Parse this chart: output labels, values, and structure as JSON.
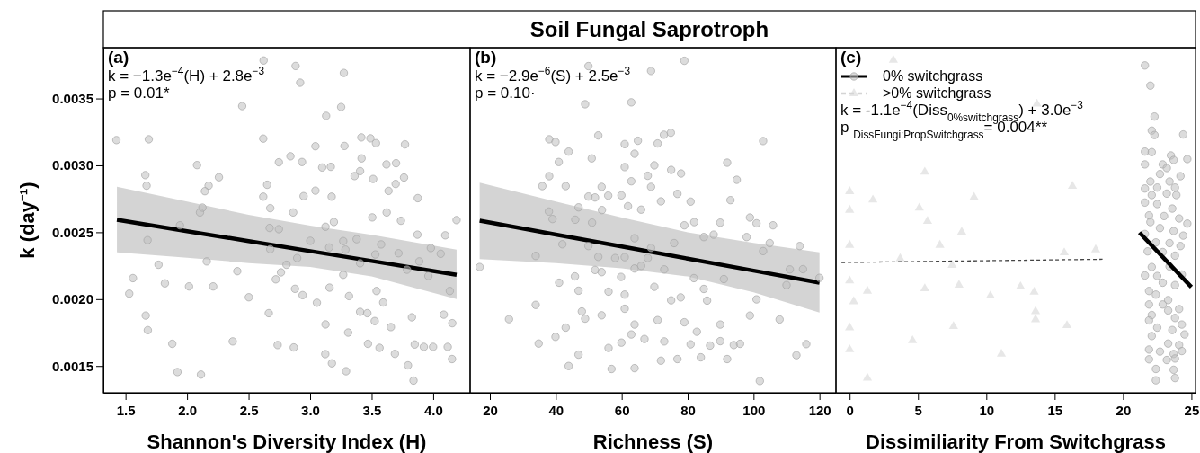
{
  "chart_data": [
    {
      "type": "scatter",
      "xlabel": "Shannon's Diversity Index (H)",
      "ylabel": "k (day⁻¹)",
      "xlim": [
        1.32,
        4.3
      ],
      "ylim": [
        0.0013,
        0.00388
      ],
      "xticks": [
        {
          "value": 1.5,
          "label": "1.5"
        },
        {
          "value": 2,
          "label": "2.0"
        },
        {
          "value": 2.5,
          "label": "2.5"
        },
        {
          "value": 3,
          "label": "3.0"
        },
        {
          "value": 3.5,
          "label": "3.5"
        },
        {
          "value": 4,
          "label": "4.0"
        }
      ],
      "yticks": [
        0.0015,
        {
          "value": 0.002,
          "label": "0.0020"
        },
        0.0025,
        {
          "value": 0.003,
          "label": "0.0030"
        },
        0.0035
      ],
      "grid": false,
      "annotations": [
        "(a)",
        "k = −1.3e$^{−4}$(H) + 2.8e$^{−3}$",
        "p = 0.01*"
      ],
      "series": [
        {
          "type": "scatter",
          "marker": "circle",
          "color": "#c0c0c0",
          "x": [
            1.426,
            1.689,
            1.661,
            1.671,
            1.679,
            1.53,
            1.56,
            1.664,
            1.681,
            1.768,
            1.82,
            1.88,
            1.922,
            1.942,
            2.016,
            2.081,
            2.113,
            2.105,
            2.125,
            2.175,
            2.145,
            2.16,
            2.212,
            2.259,
            2.371,
            2.408,
            2.448,
            2.502,
            2.622,
            2.619,
            2.651,
            2.619,
            2.676,
            2.671,
            2.676,
            2.664,
            2.721,
            2.736,
            2.746,
            2.746,
            2.763,
            2.808,
            2.84,
            2.862,
            2.867,
            2.882,
            2.919,
            2.934,
            2.947,
            2.939,
            2.877,
            2.895,
            3.001,
            3.043,
            3.043,
            3.055,
            3.098,
            3.13,
            3.125,
            3.158,
            3.155,
            3.125,
            3.123,
            3.177,
            3.175,
            3.168,
            3.193,
            3.252,
            3.274,
            3.279,
            3.269,
            3.287,
            3.269,
            3.309,
            3.292,
            3.316,
            3.361,
            3.406,
            3.418,
            3.416,
            3.378,
            3.406,
            3.406,
            3.465,
            3.47,
            3.49,
            3.505,
            3.512,
            3.535,
            3.53,
            3.54,
            3.525,
            3.564,
            3.577,
            3.594,
            3.62,
            3.622,
            3.637,
            3.656,
            3.689,
            3.698,
            3.695,
            3.718,
            3.738,
            3.771,
            3.763,
            3.787,
            3.795,
            3.827,
            3.85,
            3.84,
            3.875,
            3.872,
            3.887,
            3.924,
            3.961,
            3.981,
            4.061,
            4.098,
            4.086,
            4.118,
            4.135,
            4.155,
            4.153,
            4.19,
            3.999
          ],
          "values": [
            0.003189,
            0.003195,
            0.002927,
            0.002848,
            0.002441,
            0.002041,
            0.002157,
            0.001877,
            0.001768,
            0.002257,
            0.002118,
            0.001666,
            0.001455,
            0.002552,
            0.002095,
            0.003002,
            0.001436,
            0.002648,
            0.002684,
            0.002848,
            0.002807,
            0.002282,
            0.002095,
            0.002911,
            0.001684,
            0.002209,
            0.003443,
            0.002014,
            0.003784,
            0.0032,
            0.002855,
            0.002766,
            0.00268,
            0.002532,
            0.002373,
            0.001895,
            0.002148,
            0.001657,
            0.003023,
            0.002523,
            0.0022,
            0.002257,
            0.003068,
            0.002648,
            0.001639,
            0.003743,
            0.003618,
            0.003025,
            0.00277,
            0.00203,
            0.002077,
            0.002307,
            0.002436,
            0.002811,
            0.003143,
            0.001973,
            0.002984,
            0.00337,
            0.002541,
            0.002086,
            0.002386,
            0.001811,
            0.001589,
            0.00152,
            0.002766,
            0.002989,
            0.002577,
            0.003436,
            0.003691,
            0.003145,
            0.002434,
            0.00237,
            0.002182,
            0.00175,
            0.001461,
            0.002023,
            0.00292,
            0.002957,
            0.003052,
            0.003209,
            0.002448,
            0.002268,
            0.001905,
            0.001895,
            0.001666,
            0.003202,
            0.002611,
            0.002898,
            0.003166,
            0.002334,
            0.002061,
            0.001836,
            0.001636,
            0.002409,
            0.001975,
            0.003007,
            0.002648,
            0.002809,
            0.001791,
            0.001591,
            0.003016,
            0.002861,
            0.002343,
            0.002586,
            0.003157,
            0.002909,
            0.00222,
            0.001505,
            0.001864,
            0.001661,
            0.001391,
            0.002755,
            0.002482,
            0.002282,
            0.001643,
            0.002173,
            0.002382,
            0.002339,
            0.002477,
            0.001884,
            0.001643,
            0.002061,
            0.00182,
            0.001552,
            0.002591,
            0.001643
          ]
        },
        {
          "type": "line",
          "color": "#000000",
          "line_style": "solid",
          "x": [
            1.43,
            2.0,
            2.5,
            3.0,
            3.5,
            4.19
          ],
          "values": [
            0.002593,
            0.002508,
            0.002434,
            0.002359,
            0.002285,
            0.002182
          ],
          "lower": [
            0.00235,
            0.00231,
            0.00227,
            0.00224,
            0.00217,
            0.002
          ],
          "upper": [
            0.00284,
            0.00273,
            0.00263,
            0.00255,
            0.00248,
            0.00237
          ]
        }
      ]
    },
    {
      "type": "scatter",
      "title": "Soil Fungal Saprotroph",
      "xlabel": "Richness (S)",
      "xlim": [
        14,
        125
      ],
      "ylim": [
        0.0013,
        0.00388
      ],
      "xticks": [
        20,
        40,
        60,
        80,
        100,
        120
      ],
      "tick_labels": "x",
      "grid": false,
      "annotations": [
        "(b)",
        "k = −2.9e$^{−6}$(S) + 2.5e$^{−3}$",
        "p = 0.10·"
      ],
      "series": [
        {
          "type": "scatter",
          "marker": "circle",
          "color": "#c0c0c0",
          "x": [
            16.9,
            25.8,
            33.9,
            33.9,
            35.9,
            38,
            38,
            37.9,
            39,
            39.9,
            40.9,
            41,
            39.9,
            34.8,
            42,
            43,
            43,
            43.9,
            43.9,
            45.8,
            45.9,
            46.9,
            46.9,
            46.9,
            47.9,
            48.9,
            48.9,
            49.9,
            49.9,
            49.9,
            50.9,
            51,
            51.9,
            51.9,
            52.9,
            52.9,
            53.9,
            54,
            53.9,
            53.9,
            55.9,
            56,
            56,
            56.9,
            58,
            59.9,
            59.8,
            59.9,
            60.9,
            60.9,
            60.9,
            60.9,
            60.9,
            61.9,
            62.9,
            62.9,
            62.9,
            63.9,
            63.9,
            63.9,
            63.9,
            63.9,
            64.9,
            65.9,
            65.9,
            66.9,
            67.9,
            67.9,
            68.9,
            68.9,
            68.9,
            69.9,
            69.9,
            70.9,
            70.9,
            71.9,
            71.9,
            72.8,
            72.9,
            72.9,
            74.9,
            75,
            75,
            75.9,
            76.9,
            76.9,
            78,
            77.9,
            79,
            79,
            79,
            80.9,
            80.9,
            82,
            81.9,
            82.8,
            84,
            84.9,
            84.9,
            85.9,
            86.8,
            87.9,
            89.9,
            89.9,
            89.9,
            91,
            92,
            92,
            93,
            94,
            94.9,
            95.9,
            97.9,
            98.9,
            98.9,
            100.9,
            100.9,
            101.9,
            102.9,
            102.9,
            104.9,
            105.9,
            107.9,
            110,
            111,
            113,
            114,
            115,
            116,
            120
          ],
          "values": [
            0.00224,
            0.00185,
            0.002323,
            0.001957,
            0.002845,
            0.003195,
            0.002919,
            0.002655,
            0.002599,
            0.003175,
            0.003025,
            0.002123,
            0.001718,
            0.001668,
            0.00241,
            0.001787,
            0.002845,
            0.003103,
            0.0015,
            0.00217,
            0.002594,
            0.002686,
            0.002063,
            0.001585,
            0.001908,
            0.003457,
            0.001854,
            0.003742,
            0.002767,
            0.002397,
            0.003052,
            0.002572,
            0.00276,
            0.002218,
            0.003224,
            0.002316,
            0.002839,
            0.002666,
            0.002202,
            0.001879,
            0.002774,
            0.002056,
            0.001635,
            0.001478,
            0.002307,
            0.002776,
            0.002166,
            0.001675,
            0.003159,
            0.002987,
            0.002314,
            0.002034,
            0.001928,
            0.002695,
            0.003471,
            0.002881,
            0.001736,
            0.003087,
            0.002455,
            0.002229,
            0.00181,
            0.001484,
            0.003184,
            0.002669,
            0.002249,
            0.001702,
            0.002922,
            0.002307,
            0.003706,
            0.002839,
            0.002383,
            0.003,
            0.002092,
            0.003164,
            0.001843,
            0.002731,
            0.00154,
            0.003229,
            0.002222,
            0.001684,
            0.003244,
            0.002966,
            0.001991,
            0.002419,
            0.002787,
            0.001552,
            0.002939,
            0.002013,
            0.003782,
            0.002552,
            0.001827,
            0.002729,
            0.001662,
            0.002576,
            0.002157,
            0.001756,
            0.001565,
            0.002464,
            0.002076,
            0.001989,
            0.001653,
            0.002482,
            0.002572,
            0.00181,
            0.001686,
            0.00215,
            0.00302,
            0.001552,
            0.00274,
            0.001657,
            0.002892,
            0.001666,
            0.002464,
            0.00261,
            0.001877,
            0.002567,
            0.001998,
            0.001388,
            0.003182,
            0.002359,
            0.002419,
            0.002552,
            0.001848,
            0.002105,
            0.002222,
            0.001581,
            0.002397,
            0.002224,
            0.001664,
            0.002159
          ]
        },
        {
          "type": "line",
          "color": "#000000",
          "line_style": "solid",
          "x": [
            16.9,
            40,
            60,
            80,
            100,
            120
          ],
          "values": [
            0.002587,
            0.002483,
            0.002393,
            0.002303,
            0.002213,
            0.002123
          ],
          "lower": [
            0.0023,
            0.00227,
            0.00223,
            0.00217,
            0.00205,
            0.0019
          ],
          "upper": [
            0.00287,
            0.00273,
            0.00261,
            0.0025,
            0.00242,
            0.00235
          ]
        }
      ]
    },
    {
      "type": "scatter",
      "xlabel": "Dissimiliarity From Switchgrass",
      "xlim": [
        -1,
        25.3
      ],
      "ylim": [
        0.0013,
        0.00388
      ],
      "xticks": [
        0,
        5,
        10,
        15,
        20,
        25
      ],
      "tick_labels": "x",
      "grid": false,
      "legend": "top left",
      "annotations": [
        "(c)",
        "k = -1.1e$^{−4}$(Diss$_{0%switchgrass}$) + 3.0e$^{−3}$",
        "p $_{DissFungi:PropSwitchgrass}$= 0.004**"
      ],
      "series": [
        {
          "name": "0% switchgrass",
          "type": "scatter",
          "marker": "circle",
          "color": "#c0c0c0",
          "x": [
            21.6,
            22,
            22.3,
            22.1,
            24.4,
            22.3,
            21.6,
            22.1,
            23.5,
            23.7,
            24.7,
            21.6,
            22.9,
            23.2,
            22.7,
            24.2,
            22,
            23.4,
            21.6,
            22.5,
            23.8,
            22.1,
            23.2,
            23.9,
            21.6,
            22.5,
            23.6,
            21.9,
            23,
            24.1,
            24.7,
            22,
            22.7,
            23.7,
            21.6,
            24.4,
            22.4,
            23.4,
            24.2,
            21.8,
            22.9,
            23.8,
            22.1,
            23.4,
            21.6,
            22.5,
            24.3,
            22.9,
            23.8,
            21.9,
            22.4,
            23.3,
            21.9,
            22.9,
            24.1,
            23.3,
            22.1,
            23.8,
            21.9,
            22.5,
            24.3,
            23.6,
            24.5,
            22.1,
            23.3,
            24.1,
            21.9,
            22.7,
            23.7,
            24.3,
            21.9,
            23.2,
            23.8,
            22.4,
            23.7,
            22.4,
            23.8
          ],
          "values": [
            0.003747,
            0.003596,
            0.003365,
            0.00326,
            0.003231,
            0.003227,
            0.003103,
            0.003099,
            0.003074,
            0.00304,
            0.003047,
            0.003007,
            0.003007,
            0.00298,
            0.002935,
            0.002919,
            0.002879,
            0.002879,
            0.002827,
            0.002834,
            0.002834,
            0.002778,
            0.002789,
            0.002778,
            0.002722,
            0.002711,
            0.002677,
            0.002626,
            0.002621,
            0.002603,
            0.002565,
            0.002576,
            0.002531,
            0.002509,
            0.002487,
            0.002475,
            0.002424,
            0.002419,
            0.002397,
            0.002357,
            0.002352,
            0.002325,
            0.00224,
            0.002244,
            0.002177,
            0.002173,
            0.002184,
            0.002123,
            0.002105,
            0.002061,
            0.002034,
            0.001993,
            0.00196,
            0.00196,
            0.001926,
            0.001915,
            0.001881,
            0.001859,
            0.001841,
            0.001787,
            0.00181,
            0.001769,
            0.001736,
            0.001724,
            0.001668,
            0.001657,
            0.001623,
            0.001608,
            0.00159,
            0.001612,
            0.00155,
            0.001545,
            0.001556,
            0.001478,
            0.001472,
            0.001393,
            0.00141
          ]
        },
        {
          "type": "line",
          "color": "#000000",
          "line_style": "solid",
          "x": [
            21.2,
            25
          ],
          "values": [
            0.002498,
            0.00209
          ]
        },
        {
          "name": ">0% switchgrass",
          "type": "scatter",
          "marker": "triangle",
          "color": "#d4d4d4",
          "x": [
            3.2,
            0,
            0,
            0,
            0,
            0,
            0,
            1.7,
            1.3,
            0.3,
            1.3,
            3.7,
            4.6,
            5.1,
            5.5,
            5.7,
            5.5,
            6.6,
            7.5,
            7.6,
            8,
            8.2,
            9.1,
            10.3,
            11.1,
            12.5,
            13.5,
            13.6,
            13.6,
            13.7,
            15.7,
            15.9,
            16.3,
            18
          ],
          "values": [
            0.003787,
            0.002805,
            0.002666,
            0.002404,
            0.002137,
            0.001787,
            0.001623,
            0.002742,
            0.002061,
            0.001982,
            0.00141,
            0.002303,
            0.001691,
            0.002682,
            0.002951,
            0.002583,
            0.002079,
            0.002404,
            0.002253,
            0.001796,
            0.002106,
            0.002502,
            0.002762,
            0.002025,
            0.00159,
            0.002094,
            0.002054,
            0.001908,
            0.001848,
            0.00346,
            0.002348,
            0.001803,
            0.002845,
            0.00237
          ]
        },
        {
          "type": "line",
          "color": "#444444",
          "line_style": "dashed",
          "x": [
            -0.6,
            18.5
          ],
          "values": [
            0.002274,
            0.002298
          ]
        }
      ]
    }
  ]
}
